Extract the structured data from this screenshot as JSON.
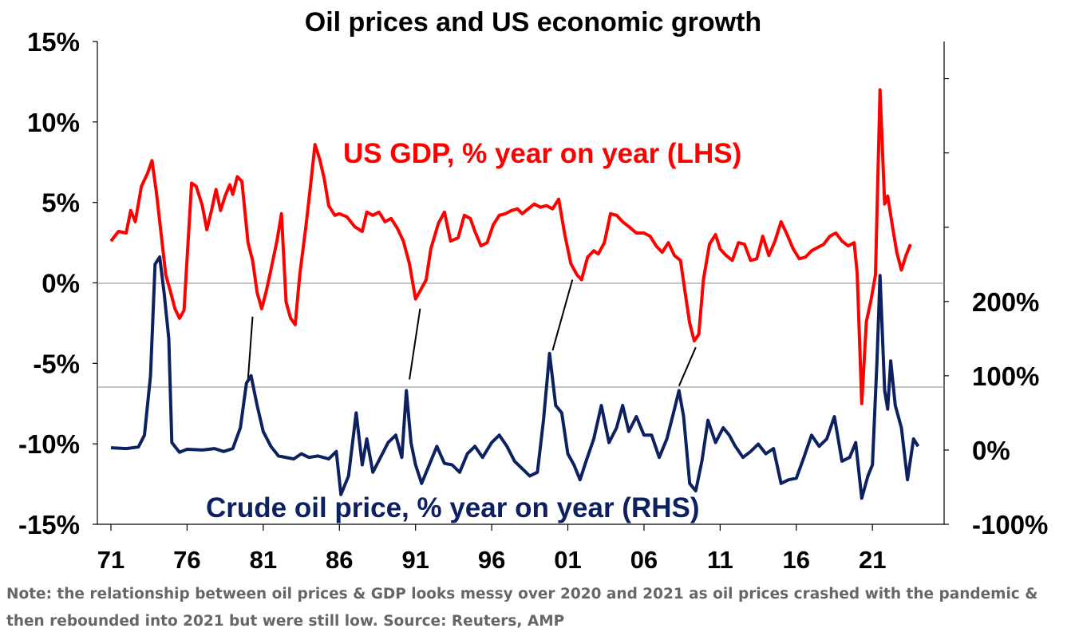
{
  "note": "Note: the relationship between oil prices & GDP looks messy over 2020 and 2021 as oil prices crashed with the pandemic & then rebounded into 2021 but were still low. Source: Reuters, AMP",
  "colors": {
    "gdp": "#ff0000",
    "oil": "#0d2160",
    "axis": "#000000",
    "gridline": "#888888",
    "note": "#666666"
  },
  "chart_data": {
    "type": "line",
    "title": "Oil prices and US economic growth",
    "x_range": [
      1971,
      2024.5
    ],
    "x_ticks": [
      "71",
      "76",
      "81",
      "86",
      "91",
      "96",
      "01",
      "06",
      "11",
      "16",
      "21"
    ],
    "y_left": {
      "range": [
        -15,
        15
      ],
      "ticks": [
        15,
        10,
        5,
        0,
        -5,
        -10,
        -15
      ],
      "tick_labels": [
        "15%",
        "10%",
        "5%",
        "0%",
        "-5%",
        "-10%",
        "-15%"
      ]
    },
    "y_right": {
      "range": [
        -100,
        550
      ],
      "ticks": [
        200,
        100,
        0,
        -100
      ],
      "tick_labels": [
        "200%",
        "100%",
        "0%",
        "-100%"
      ]
    },
    "series": [
      {
        "name": "US GDP, % year on year (LHS)",
        "axis": "left",
        "points": [
          [
            1971.0,
            2.6
          ],
          [
            1971.5,
            3.2
          ],
          [
            1972.0,
            3.1
          ],
          [
            1972.3,
            4.5
          ],
          [
            1972.6,
            3.8
          ],
          [
            1973.0,
            6.0
          ],
          [
            1973.4,
            6.8
          ],
          [
            1973.7,
            7.6
          ],
          [
            1974.0,
            5.5
          ],
          [
            1974.3,
            3.0
          ],
          [
            1974.6,
            0.5
          ],
          [
            1974.9,
            -0.5
          ],
          [
            1975.2,
            -1.6
          ],
          [
            1975.5,
            -2.2
          ],
          [
            1975.8,
            -1.7
          ],
          [
            1976.0,
            1.5
          ],
          [
            1976.3,
            6.2
          ],
          [
            1976.6,
            6.0
          ],
          [
            1977.0,
            4.8
          ],
          [
            1977.3,
            3.3
          ],
          [
            1977.6,
            4.5
          ],
          [
            1977.9,
            5.8
          ],
          [
            1978.2,
            4.5
          ],
          [
            1978.5,
            5.4
          ],
          [
            1978.8,
            6.1
          ],
          [
            1979.0,
            5.5
          ],
          [
            1979.3,
            6.6
          ],
          [
            1979.6,
            6.3
          ],
          [
            1980.0,
            2.5
          ],
          [
            1980.3,
            1.4
          ],
          [
            1980.6,
            -0.6
          ],
          [
            1980.9,
            -1.6
          ],
          [
            1981.2,
            -0.5
          ],
          [
            1981.5,
            0.8
          ],
          [
            1981.9,
            2.6
          ],
          [
            1982.2,
            4.3
          ],
          [
            1982.5,
            -1.2
          ],
          [
            1982.8,
            -2.2
          ],
          [
            1983.1,
            -2.6
          ],
          [
            1983.4,
            0.5
          ],
          [
            1983.8,
            3.5
          ],
          [
            1984.1,
            6.0
          ],
          [
            1984.4,
            8.6
          ],
          [
            1984.7,
            7.7
          ],
          [
            1985.0,
            6.5
          ],
          [
            1985.3,
            4.8
          ],
          [
            1985.7,
            4.2
          ],
          [
            1986.0,
            4.3
          ],
          [
            1986.5,
            4.1
          ],
          [
            1987.0,
            3.5
          ],
          [
            1987.5,
            3.2
          ],
          [
            1987.8,
            4.4
          ],
          [
            1988.2,
            4.2
          ],
          [
            1988.6,
            4.4
          ],
          [
            1989.0,
            3.8
          ],
          [
            1989.4,
            4.0
          ],
          [
            1989.8,
            3.4
          ],
          [
            1990.2,
            2.6
          ],
          [
            1990.6,
            1.2
          ],
          [
            1991.0,
            -1.0
          ],
          [
            1991.3,
            -0.5
          ],
          [
            1991.7,
            0.2
          ],
          [
            1992.0,
            2.1
          ],
          [
            1992.5,
            3.7
          ],
          [
            1992.9,
            4.4
          ],
          [
            1993.3,
            2.6
          ],
          [
            1993.8,
            2.8
          ],
          [
            1994.2,
            4.2
          ],
          [
            1994.6,
            4.0
          ],
          [
            1994.9,
            3.2
          ],
          [
            1995.3,
            2.3
          ],
          [
            1995.7,
            2.5
          ],
          [
            1996.1,
            3.6
          ],
          [
            1996.5,
            4.2
          ],
          [
            1996.9,
            4.3
          ],
          [
            1997.3,
            4.5
          ],
          [
            1997.7,
            4.6
          ],
          [
            1998.0,
            4.3
          ],
          [
            1998.4,
            4.6
          ],
          [
            1998.8,
            4.9
          ],
          [
            1999.2,
            4.7
          ],
          [
            1999.6,
            4.8
          ],
          [
            2000.0,
            4.6
          ],
          [
            2000.4,
            5.2
          ],
          [
            2000.8,
            3.0
          ],
          [
            2001.2,
            1.2
          ],
          [
            2001.6,
            0.5
          ],
          [
            2001.9,
            0.2
          ],
          [
            2002.3,
            1.6
          ],
          [
            2002.7,
            2.0
          ],
          [
            2003.0,
            1.8
          ],
          [
            2003.4,
            2.5
          ],
          [
            2003.8,
            4.3
          ],
          [
            2004.2,
            4.2
          ],
          [
            2004.6,
            3.8
          ],
          [
            2005.0,
            3.5
          ],
          [
            2005.5,
            3.1
          ],
          [
            2006.0,
            3.1
          ],
          [
            2006.4,
            2.9
          ],
          [
            2006.8,
            2.3
          ],
          [
            2007.2,
            1.9
          ],
          [
            2007.6,
            2.5
          ],
          [
            2008.0,
            1.7
          ],
          [
            2008.4,
            1.4
          ],
          [
            2008.7,
            -0.6
          ],
          [
            2009.0,
            -2.5
          ],
          [
            2009.3,
            -3.6
          ],
          [
            2009.6,
            -3.2
          ],
          [
            2009.9,
            0.2
          ],
          [
            2010.3,
            2.4
          ],
          [
            2010.7,
            3.0
          ],
          [
            2011.0,
            2.1
          ],
          [
            2011.4,
            1.7
          ],
          [
            2011.8,
            1.4
          ],
          [
            2012.2,
            2.5
          ],
          [
            2012.6,
            2.4
          ],
          [
            2013.0,
            1.4
          ],
          [
            2013.4,
            1.5
          ],
          [
            2013.8,
            2.9
          ],
          [
            2014.2,
            1.7
          ],
          [
            2014.6,
            2.6
          ],
          [
            2015.0,
            3.8
          ],
          [
            2015.4,
            3.0
          ],
          [
            2015.8,
            2.1
          ],
          [
            2016.2,
            1.5
          ],
          [
            2016.6,
            1.6
          ],
          [
            2017.0,
            2.0
          ],
          [
            2017.4,
            2.2
          ],
          [
            2017.8,
            2.4
          ],
          [
            2018.2,
            2.9
          ],
          [
            2018.6,
            3.1
          ],
          [
            2019.0,
            2.6
          ],
          [
            2019.4,
            2.3
          ],
          [
            2019.8,
            2.5
          ],
          [
            2020.0,
            0.6
          ],
          [
            2020.3,
            -7.5
          ],
          [
            2020.6,
            -2.4
          ],
          [
            2020.9,
            -1.1
          ],
          [
            2021.2,
            0.5
          ],
          [
            2021.5,
            12.0
          ],
          [
            2021.8,
            4.9
          ],
          [
            2022.0,
            5.4
          ],
          [
            2022.3,
            3.6
          ],
          [
            2022.6,
            1.9
          ],
          [
            2022.9,
            0.8
          ],
          [
            2023.2,
            1.7
          ],
          [
            2023.5,
            2.4
          ]
        ]
      },
      {
        "name": "Crude oil price, % year on year (RHS)",
        "axis": "right",
        "points": [
          [
            1971.0,
            3
          ],
          [
            1972.0,
            2
          ],
          [
            1972.8,
            4
          ],
          [
            1973.2,
            20
          ],
          [
            1973.6,
            100
          ],
          [
            1973.9,
            250
          ],
          [
            1974.2,
            260
          ],
          [
            1974.5,
            210
          ],
          [
            1974.8,
            150
          ],
          [
            1975.0,
            10
          ],
          [
            1975.5,
            -3
          ],
          [
            1976.0,
            1
          ],
          [
            1977.0,
            0
          ],
          [
            1977.8,
            2
          ],
          [
            1978.4,
            -2
          ],
          [
            1979.0,
            2
          ],
          [
            1979.5,
            30
          ],
          [
            1979.9,
            90
          ],
          [
            1980.2,
            100
          ],
          [
            1980.6,
            60
          ],
          [
            1981.0,
            25
          ],
          [
            1981.5,
            5
          ],
          [
            1982.0,
            -8
          ],
          [
            1983.0,
            -12
          ],
          [
            1983.5,
            -5
          ],
          [
            1984.0,
            -10
          ],
          [
            1984.6,
            -8
          ],
          [
            1985.3,
            -12
          ],
          [
            1985.8,
            -2
          ],
          [
            1986.1,
            -60
          ],
          [
            1986.6,
            -35
          ],
          [
            1987.1,
            50
          ],
          [
            1987.5,
            -20
          ],
          [
            1987.8,
            15
          ],
          [
            1988.2,
            -30
          ],
          [
            1988.7,
            -10
          ],
          [
            1989.2,
            10
          ],
          [
            1989.7,
            20
          ],
          [
            1990.1,
            -10
          ],
          [
            1990.4,
            80
          ],
          [
            1990.7,
            10
          ],
          [
            1991.0,
            -20
          ],
          [
            1991.4,
            -45
          ],
          [
            1991.9,
            -20
          ],
          [
            1992.4,
            5
          ],
          [
            1992.9,
            -18
          ],
          [
            1993.4,
            -20
          ],
          [
            1993.9,
            -30
          ],
          [
            1994.4,
            -5
          ],
          [
            1994.9,
            5
          ],
          [
            1995.4,
            -10
          ],
          [
            1996.0,
            10
          ],
          [
            1996.5,
            20
          ],
          [
            1997.0,
            5
          ],
          [
            1997.5,
            -15
          ],
          [
            1998.0,
            -25
          ],
          [
            1998.5,
            -35
          ],
          [
            1999.0,
            -30
          ],
          [
            1999.4,
            40
          ],
          [
            1999.8,
            130
          ],
          [
            2000.2,
            60
          ],
          [
            2000.6,
            50
          ],
          [
            2001.0,
            -5
          ],
          [
            2001.4,
            -20
          ],
          [
            2001.8,
            -40
          ],
          [
            2002.2,
            -15
          ],
          [
            2002.7,
            15
          ],
          [
            2003.2,
            60
          ],
          [
            2003.7,
            10
          ],
          [
            2004.2,
            30
          ],
          [
            2004.6,
            60
          ],
          [
            2005.0,
            25
          ],
          [
            2005.5,
            45
          ],
          [
            2006.0,
            20
          ],
          [
            2006.5,
            20
          ],
          [
            2007.0,
            -10
          ],
          [
            2007.5,
            15
          ],
          [
            2008.0,
            55
          ],
          [
            2008.3,
            80
          ],
          [
            2008.6,
            45
          ],
          [
            2009.0,
            -45
          ],
          [
            2009.4,
            -55
          ],
          [
            2009.8,
            -15
          ],
          [
            2010.2,
            40
          ],
          [
            2010.7,
            10
          ],
          [
            2011.2,
            30
          ],
          [
            2011.6,
            20
          ],
          [
            2012.0,
            5
          ],
          [
            2012.5,
            -10
          ],
          [
            2013.0,
            -2
          ],
          [
            2013.5,
            8
          ],
          [
            2014.0,
            -5
          ],
          [
            2014.5,
            2
          ],
          [
            2015.0,
            -45
          ],
          [
            2015.5,
            -40
          ],
          [
            2016.0,
            -38
          ],
          [
            2016.5,
            -10
          ],
          [
            2017.0,
            20
          ],
          [
            2017.5,
            5
          ],
          [
            2018.0,
            15
          ],
          [
            2018.5,
            45
          ],
          [
            2019.0,
            -15
          ],
          [
            2019.5,
            -10
          ],
          [
            2019.9,
            10
          ],
          [
            2020.3,
            -65
          ],
          [
            2020.7,
            -35
          ],
          [
            2021.0,
            -20
          ],
          [
            2021.3,
            120
          ],
          [
            2021.5,
            235
          ],
          [
            2021.8,
            80
          ],
          [
            2022.0,
            55
          ],
          [
            2022.2,
            120
          ],
          [
            2022.5,
            60
          ],
          [
            2022.9,
            30
          ],
          [
            2023.3,
            -40
          ],
          [
            2023.7,
            15
          ],
          [
            2024.0,
            5
          ]
        ]
      }
    ],
    "connectors": [
      [
        [
          1980.3,
          -2.1
        ],
        [
          1980.0,
          -6.0
        ]
      ],
      [
        [
          1991.3,
          -1.6
        ],
        [
          1990.6,
          -6.0
        ]
      ],
      [
        [
          2001.3,
          0.2
        ],
        [
          2000.0,
          -4.2
        ]
      ],
      [
        [
          2009.4,
          -4.0
        ],
        [
          2008.3,
          -6.4
        ]
      ]
    ]
  }
}
